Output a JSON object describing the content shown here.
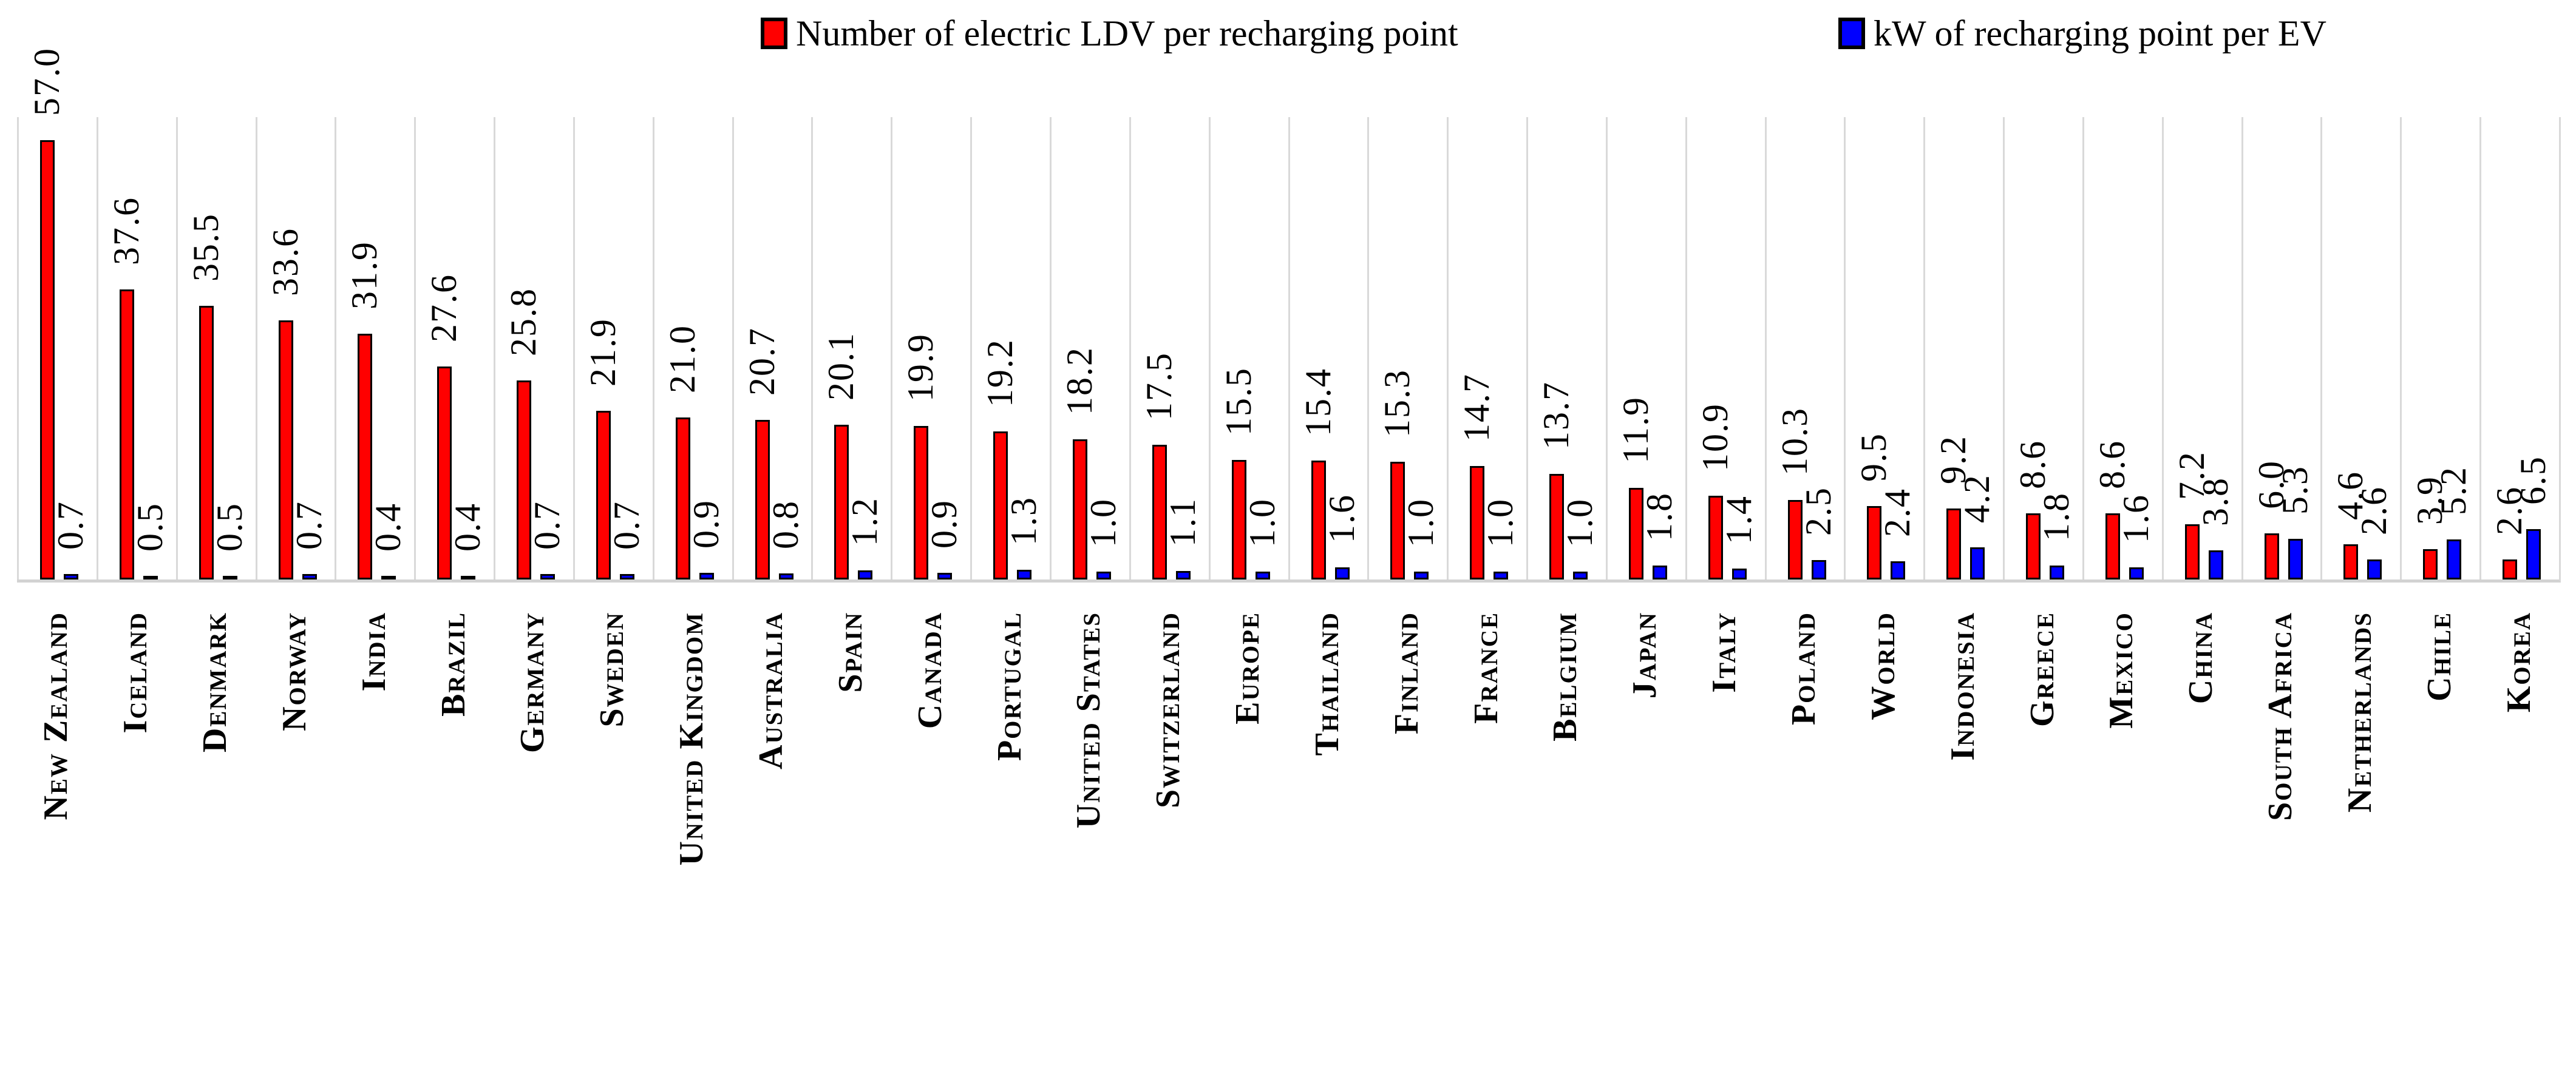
{
  "legend": [
    {
      "label": "Number of electric LDV per recharging point",
      "color": "#ff0000"
    },
    {
      "label": "kW of recharging point per EV",
      "color": "#0000ff"
    }
  ],
  "chart_data": {
    "type": "bar",
    "title": "",
    "xlabel": "",
    "ylabel": "",
    "ylim": [
      0,
      60
    ],
    "grid": "vertical-category-separators",
    "legend_position": "top",
    "value_labels": "rotated-90-outside-end",
    "categories": [
      "New Zealand",
      "Iceland",
      "Denmark",
      "Norway",
      "India",
      "Brazil",
      "Germany",
      "Sweden",
      "United Kingdom",
      "Australia",
      "Spain",
      "Canada",
      "Portugal",
      "United States",
      "Switzerland",
      "Europe",
      "Thailand",
      "Finland",
      "France",
      "Belgium",
      "Japan",
      "Italy",
      "Poland",
      "World",
      "Indonesia",
      "Greece",
      "Mexico",
      "China",
      "South Africa",
      "Netherlands",
      "Chile",
      "Korea"
    ],
    "series": [
      {
        "name": "Number of electric LDV per recharging point",
        "color": "#ff0000",
        "values": [
          57.0,
          37.6,
          35.5,
          33.6,
          31.9,
          27.6,
          25.8,
          21.9,
          21.0,
          20.7,
          20.1,
          19.9,
          19.2,
          18.2,
          17.5,
          15.5,
          15.4,
          15.3,
          14.7,
          13.7,
          11.9,
          10.9,
          10.3,
          9.5,
          9.2,
          8.6,
          8.6,
          7.2,
          6.0,
          4.6,
          3.9,
          2.6
        ]
      },
      {
        "name": "kW of recharging point per EV",
        "color": "#0000ff",
        "values": [
          0.7,
          0.5,
          0.5,
          0.7,
          0.4,
          0.4,
          0.7,
          0.7,
          0.9,
          0.8,
          1.2,
          0.9,
          1.3,
          1.0,
          1.1,
          1.0,
          1.6,
          1.0,
          1.0,
          1.0,
          1.8,
          1.4,
          2.5,
          2.4,
          4.2,
          1.8,
          1.6,
          3.8,
          5.3,
          2.6,
          5.2,
          6.5
        ]
      }
    ],
    "gridline_color": "#d9d9d9",
    "axis_line_color": "#d2d2d2"
  }
}
